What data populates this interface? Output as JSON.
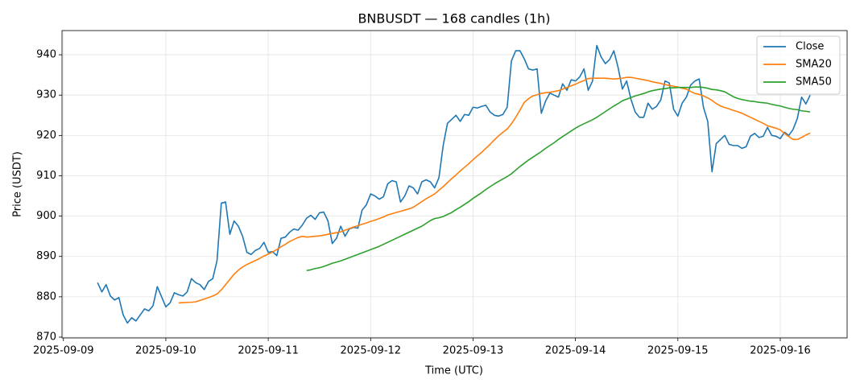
{
  "chart_data": {
    "type": "line",
    "title": "BNBUSDT — 168 candles (1h)",
    "x_label": "Time (UTC)",
    "y_label": "Price (USDT)",
    "x": [
      "2025-09-09 08:00",
      "2025-09-09 09:00",
      "2025-09-09 10:00",
      "2025-09-09 11:00",
      "2025-09-09 12:00",
      "2025-09-09 13:00",
      "2025-09-09 14:00",
      "2025-09-09 15:00",
      "2025-09-09 16:00",
      "2025-09-09 17:00",
      "2025-09-09 18:00",
      "2025-09-09 19:00",
      "2025-09-09 20:00",
      "2025-09-09 21:00",
      "2025-09-09 22:00",
      "2025-09-09 23:00",
      "2025-09-10 00:00",
      "2025-09-10 01:00",
      "2025-09-10 02:00",
      "2025-09-10 03:00",
      "2025-09-10 04:00",
      "2025-09-10 05:00",
      "2025-09-10 06:00",
      "2025-09-10 07:00",
      "2025-09-10 08:00",
      "2025-09-10 09:00",
      "2025-09-10 10:00",
      "2025-09-10 11:00",
      "2025-09-10 12:00",
      "2025-09-10 13:00",
      "2025-09-10 14:00",
      "2025-09-10 15:00",
      "2025-09-10 16:00",
      "2025-09-10 17:00",
      "2025-09-10 18:00",
      "2025-09-10 19:00",
      "2025-09-10 20:00",
      "2025-09-10 21:00",
      "2025-09-10 22:00",
      "2025-09-10 23:00",
      "2025-09-11 00:00",
      "2025-09-11 01:00",
      "2025-09-11 02:00",
      "2025-09-11 03:00",
      "2025-09-11 04:00",
      "2025-09-11 05:00",
      "2025-09-11 06:00",
      "2025-09-11 07:00",
      "2025-09-11 08:00",
      "2025-09-11 09:00",
      "2025-09-11 10:00",
      "2025-09-11 11:00",
      "2025-09-11 12:00",
      "2025-09-11 13:00",
      "2025-09-11 14:00",
      "2025-09-11 15:00",
      "2025-09-11 16:00",
      "2025-09-11 17:00",
      "2025-09-11 18:00",
      "2025-09-11 19:00",
      "2025-09-11 20:00",
      "2025-09-11 21:00",
      "2025-09-11 22:00",
      "2025-09-11 23:00",
      "2025-09-12 00:00",
      "2025-09-12 01:00",
      "2025-09-12 02:00",
      "2025-09-12 03:00",
      "2025-09-12 04:00",
      "2025-09-12 05:00",
      "2025-09-12 06:00",
      "2025-09-12 07:00",
      "2025-09-12 08:00",
      "2025-09-12 09:00",
      "2025-09-12 10:00",
      "2025-09-12 11:00",
      "2025-09-12 12:00",
      "2025-09-12 13:00",
      "2025-09-12 14:00",
      "2025-09-12 15:00",
      "2025-09-12 16:00",
      "2025-09-12 17:00",
      "2025-09-12 18:00",
      "2025-09-12 19:00",
      "2025-09-12 20:00",
      "2025-09-12 21:00",
      "2025-09-12 22:00",
      "2025-09-12 23:00",
      "2025-09-13 00:00",
      "2025-09-13 01:00",
      "2025-09-13 02:00",
      "2025-09-13 03:00",
      "2025-09-13 04:00",
      "2025-09-13 05:00",
      "2025-09-13 06:00",
      "2025-09-13 07:00",
      "2025-09-13 08:00",
      "2025-09-13 09:00",
      "2025-09-13 10:00",
      "2025-09-13 11:00",
      "2025-09-13 12:00",
      "2025-09-13 13:00",
      "2025-09-13 14:00",
      "2025-09-13 15:00",
      "2025-09-13 16:00",
      "2025-09-13 17:00",
      "2025-09-13 18:00",
      "2025-09-13 19:00",
      "2025-09-13 20:00",
      "2025-09-13 21:00",
      "2025-09-13 22:00",
      "2025-09-13 23:00",
      "2025-09-14 00:00",
      "2025-09-14 01:00",
      "2025-09-14 02:00",
      "2025-09-14 03:00",
      "2025-09-14 04:00",
      "2025-09-14 05:00",
      "2025-09-14 06:00",
      "2025-09-14 07:00",
      "2025-09-14 08:00",
      "2025-09-14 09:00",
      "2025-09-14 10:00",
      "2025-09-14 11:00",
      "2025-09-14 12:00",
      "2025-09-14 13:00",
      "2025-09-14 14:00",
      "2025-09-14 15:00",
      "2025-09-14 16:00",
      "2025-09-14 17:00",
      "2025-09-14 18:00",
      "2025-09-14 19:00",
      "2025-09-14 20:00",
      "2025-09-14 21:00",
      "2025-09-14 22:00",
      "2025-09-14 23:00",
      "2025-09-15 00:00",
      "2025-09-15 01:00",
      "2025-09-15 02:00",
      "2025-09-15 03:00",
      "2025-09-15 04:00",
      "2025-09-15 05:00",
      "2025-09-15 06:00",
      "2025-09-15 07:00",
      "2025-09-15 08:00",
      "2025-09-15 09:00",
      "2025-09-15 10:00",
      "2025-09-15 11:00",
      "2025-09-15 12:00",
      "2025-09-15 13:00",
      "2025-09-15 14:00",
      "2025-09-15 15:00",
      "2025-09-15 16:00",
      "2025-09-15 17:00",
      "2025-09-15 18:00",
      "2025-09-15 19:00",
      "2025-09-15 20:00",
      "2025-09-15 21:00",
      "2025-09-15 22:00",
      "2025-09-15 23:00",
      "2025-09-16 00:00",
      "2025-09-16 01:00",
      "2025-09-16 02:00",
      "2025-09-16 03:00",
      "2025-09-16 04:00",
      "2025-09-16 05:00",
      "2025-09-16 06:00",
      "2025-09-16 07:00"
    ],
    "series": [
      {
        "name": "Close",
        "color": "#1f77b4",
        "values": [
          883.5,
          881.2,
          883,
          880.2,
          879.2,
          879.8,
          875.5,
          873.5,
          874.8,
          874,
          875.5,
          877,
          876.5,
          877.8,
          882.5,
          880,
          877.5,
          878.5,
          881,
          880.5,
          880.2,
          881.2,
          884.5,
          883.5,
          883,
          881.8,
          883.8,
          884.5,
          889,
          903.2,
          903.5,
          895.5,
          898.8,
          897.5,
          895,
          891,
          890.5,
          891.5,
          892,
          893.5,
          891,
          891.2,
          890.2,
          894.5,
          894.8,
          896,
          896.8,
          896.5,
          897.8,
          899.5,
          900.2,
          899.2,
          900.8,
          901,
          898.8,
          893.2,
          894.5,
          897.5,
          895,
          896.8,
          897.2,
          897,
          901.5,
          902.8,
          905.5,
          905,
          904.2,
          904.8,
          908,
          908.8,
          908.5,
          903.5,
          905,
          907.5,
          907,
          905.5,
          908.5,
          909,
          908.5,
          907,
          909.5,
          917.5,
          923,
          924,
          925,
          923.5,
          925.2,
          925,
          927,
          926.8,
          927.2,
          927.5,
          925.8,
          925,
          924.8,
          925.2,
          927,
          938.5,
          941,
          941,
          939,
          936.5,
          936.2,
          936.5,
          925.5,
          928.5,
          930.5,
          930,
          929.5,
          932.8,
          931.2,
          933.8,
          933.5,
          934.5,
          936.5,
          931.2,
          933.5,
          942.3,
          939.5,
          937.8,
          938.8,
          941,
          936.8,
          931.5,
          933.5,
          929,
          925.8,
          924.5,
          924.5,
          928,
          926.5,
          927.2,
          928.8,
          933.5,
          933,
          926.5,
          924.8,
          928,
          929.5,
          932.5,
          933.5,
          934,
          927,
          923.5,
          911,
          918,
          919,
          920,
          917.8,
          917.5,
          917.5,
          916.8,
          917.2,
          919.8,
          920.5,
          919.5,
          919.8,
          922,
          920,
          919.8,
          919.2,
          920.8,
          920,
          921.5,
          924.2,
          929.5,
          927.8,
          930
        ]
      },
      {
        "name": "SMA20",
        "color": "#ff7f0e",
        "values": [
          null,
          null,
          null,
          null,
          null,
          null,
          null,
          null,
          null,
          null,
          null,
          null,
          null,
          null,
          null,
          null,
          null,
          null,
          null,
          878.5,
          878.55,
          878.6,
          878.65,
          878.75,
          879.1,
          879.45,
          879.8,
          880.2,
          880.7,
          881.7,
          883,
          884.3,
          885.6,
          886.6,
          887.4,
          888,
          888.5,
          889,
          889.5,
          890.1,
          890.6,
          891.1,
          891.7,
          892.4,
          893,
          893.7,
          894.2,
          894.7,
          895,
          894.8,
          894.9,
          895,
          895.1,
          895.3,
          895.5,
          895.7,
          895.9,
          896.1,
          896.5,
          896.9,
          897.3,
          897.6,
          898,
          898.3,
          898.7,
          899,
          899.4,
          899.8,
          900.3,
          900.6,
          900.9,
          901.2,
          901.5,
          901.8,
          902.2,
          902.9,
          903.6,
          904.3,
          904.9,
          905.5,
          906.4,
          907.3,
          908.3,
          909.3,
          910.2,
          911.2,
          912.1,
          913,
          914,
          914.9,
          915.8,
          916.8,
          917.8,
          918.9,
          919.9,
          920.8,
          921.6,
          922.9,
          924.5,
          926.3,
          928.2,
          929.1,
          929.8,
          930.1,
          930.4,
          930.6,
          930.7,
          930.9,
          931.1,
          931.5,
          931.9,
          932.3,
          932.7,
          933.2,
          933.6,
          934.1,
          934.2,
          934.2,
          934.2,
          934.2,
          934.1,
          934,
          934.1,
          934.2,
          934.4,
          934.4,
          934.2,
          934,
          933.8,
          933.6,
          933.3,
          933.1,
          932.9,
          932.6,
          932.4,
          932.2,
          932,
          931.7,
          931.5,
          930.9,
          930.4,
          930.2,
          929.8,
          929.3,
          928.7,
          927.9,
          927.3,
          926.9,
          926.6,
          926.2,
          925.9,
          925.5,
          925,
          924.5,
          924,
          923.5,
          923,
          922.4,
          922.1,
          921.8,
          921.4,
          920.5,
          919.7,
          919,
          919,
          919.5,
          920.1,
          920.6
        ]
      },
      {
        "name": "SMA50",
        "color": "#2ca02c",
        "values": [
          null,
          null,
          null,
          null,
          null,
          null,
          null,
          null,
          null,
          null,
          null,
          null,
          null,
          null,
          null,
          null,
          null,
          null,
          null,
          null,
          null,
          null,
          null,
          null,
          null,
          null,
          null,
          null,
          null,
          null,
          null,
          null,
          null,
          null,
          null,
          null,
          null,
          null,
          null,
          null,
          null,
          null,
          null,
          null,
          null,
          null,
          null,
          null,
          null,
          886.5,
          886.7,
          887,
          887.2,
          887.5,
          887.9,
          888.3,
          888.6,
          888.9,
          889.3,
          889.7,
          890.1,
          890.5,
          890.9,
          891.3,
          891.7,
          892.1,
          892.5,
          893,
          893.5,
          894,
          894.5,
          895,
          895.5,
          896,
          896.5,
          897,
          897.5,
          898.2,
          898.9,
          899.4,
          899.6,
          899.9,
          900.4,
          900.9,
          901.6,
          902.2,
          902.9,
          903.6,
          904.4,
          905.1,
          905.8,
          906.6,
          907.3,
          908,
          908.6,
          909.2,
          909.8,
          910.5,
          911.4,
          912.3,
          913.1,
          913.9,
          914.6,
          915.3,
          916,
          916.8,
          917.5,
          918.2,
          919,
          919.7,
          920.4,
          921.1,
          921.8,
          922.4,
          922.9,
          923.4,
          923.9,
          924.5,
          925.2,
          925.9,
          926.6,
          927.3,
          927.9,
          928.6,
          929,
          929.4,
          929.8,
          930.1,
          930.4,
          930.8,
          931.1,
          931.3,
          931.5,
          931.6,
          931.8,
          931.8,
          931.9,
          931.9,
          931.9,
          931.9,
          932,
          932,
          931.9,
          931.7,
          931.4,
          931.3,
          931.1,
          930.8,
          930.2,
          929.6,
          929.2,
          928.9,
          928.7,
          928.5,
          928.4,
          928.2,
          928.1,
          928,
          927.7,
          927.5,
          927.3,
          927,
          926.7,
          926.5,
          926.4,
          926.1,
          926,
          925.8
        ]
      }
    ],
    "xlim": [
      "2025-09-08 23:40",
      "2025-09-16 15:40"
    ],
    "xticks": [
      "2025-09-09",
      "2025-09-10",
      "2025-09-11",
      "2025-09-12",
      "2025-09-13",
      "2025-09-14",
      "2025-09-15",
      "2025-09-16"
    ],
    "ylim": [
      869.8,
      946
    ],
    "yticks": [
      870,
      880,
      890,
      900,
      910,
      920,
      930,
      940
    ],
    "grid": true,
    "legend": "upper right"
  }
}
